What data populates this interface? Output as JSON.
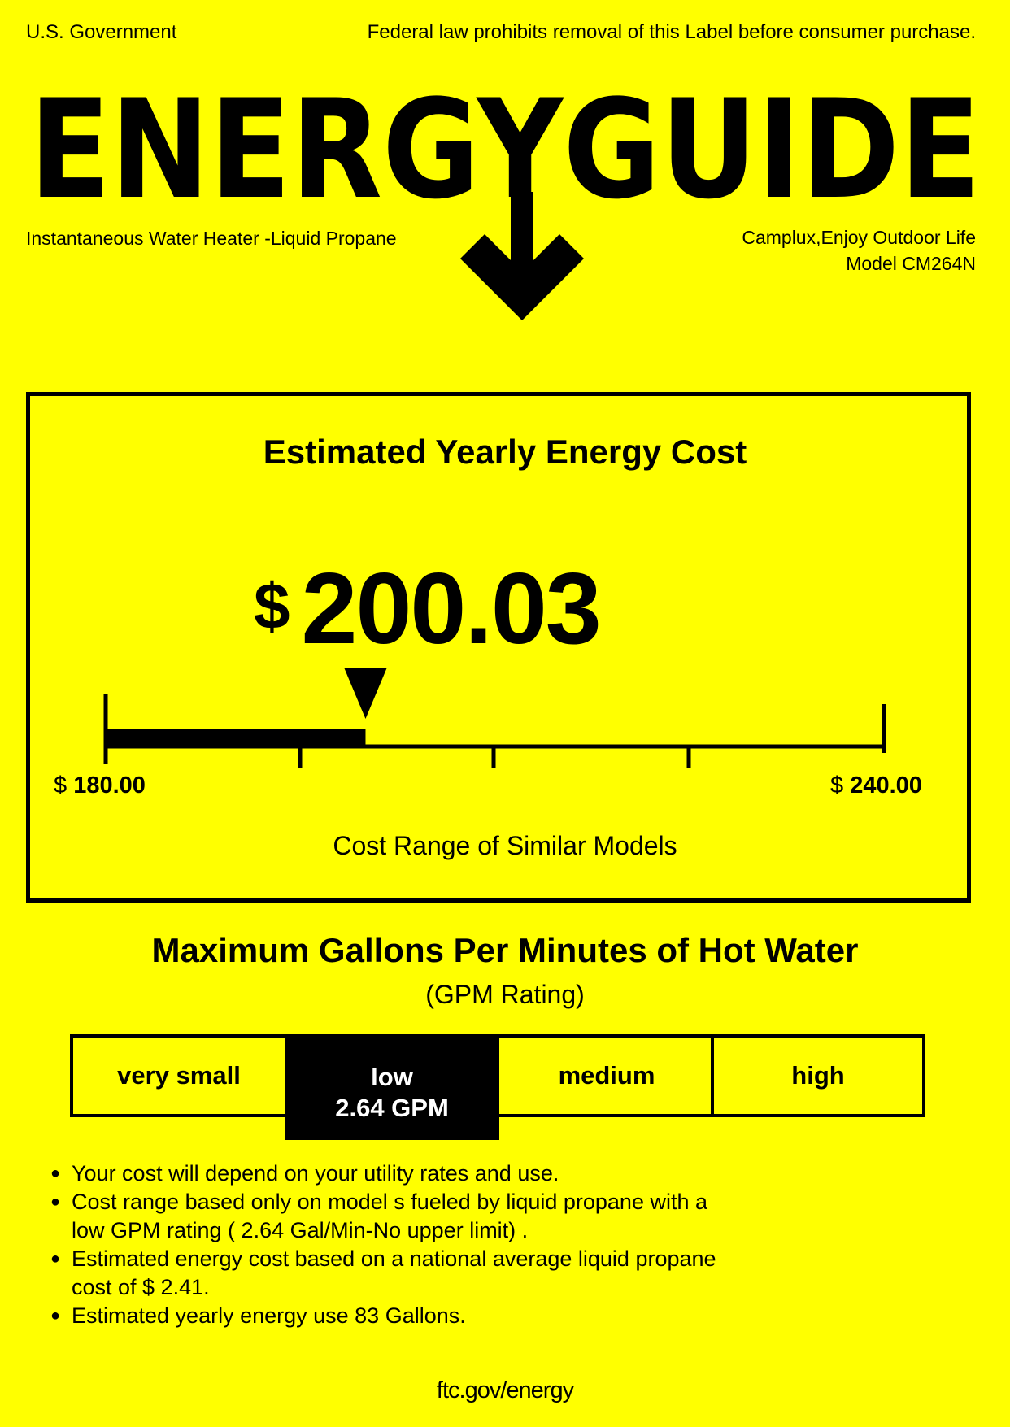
{
  "header": {
    "government": "U.S. Government",
    "law_notice": "Federal law prohibits removal of this Label before consumer purchase.",
    "logo_text": "ENERGYGUIDE",
    "logo_icon": "down-arrow-icon",
    "product_type": "Instantaneous Water Heater -Liquid Propane",
    "brand": "Camplux,Enjoy Outdoor Life",
    "model": "Model CM264N"
  },
  "cost": {
    "title": "Estimated Yearly Energy Cost",
    "currency": "$",
    "amount": "200.03",
    "range_low": "180.00",
    "range_high": "240.00",
    "range_caption": "Cost Range of Similar Models",
    "value": 200.03,
    "min": 180.0,
    "max": 240.0
  },
  "gpm": {
    "title": "Maximum Gallons Per Minutes of Hot Water",
    "subtitle": "(GPM Rating)",
    "categories": [
      "very small",
      "low",
      "medium",
      "high"
    ],
    "selected_index": 1,
    "selected_value": "2.64 GPM"
  },
  "notes": [
    "Your cost will depend on your utility rates and use.",
    "Cost range based only on model s fueled by liquid propane with a",
    "low GPM rating ( 2.64 Gal/Min-No upper limit) .",
    "Estimated energy cost based on a national average liquid propane",
    "cost of  $ 2.41.",
    "Estimated yearly energy use 83 Gallons."
  ],
  "footer": "ftc.gov/energy",
  "colors": {
    "background": "#ffff00",
    "ink": "#000000"
  }
}
